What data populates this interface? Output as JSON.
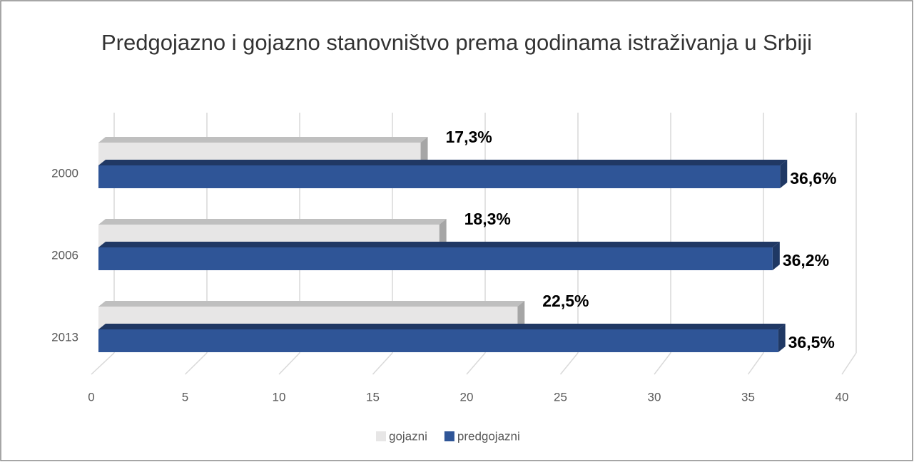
{
  "chart_data": {
    "type": "bar3d",
    "title": "Predgojazno i gojazno stanovništvo prema godinama istraživanja u Srbiji",
    "orientation": "horizontal",
    "categories": [
      "2000",
      "2006",
      "2013"
    ],
    "series": [
      {
        "name": "gojazni",
        "color": "#e7e6e6",
        "values": [
          17.3,
          18.3,
          22.5
        ],
        "value_labels": [
          "17,3%",
          "18,3%",
          "22,5%"
        ]
      },
      {
        "name": "predgojazni",
        "color": "#2f5597",
        "values": [
          36.6,
          36.2,
          36.5
        ],
        "value_labels": [
          "36,6%",
          "36,2%",
          "36,5%"
        ]
      }
    ],
    "xlim": [
      0,
      40
    ],
    "xticks": [
      0,
      5,
      10,
      15,
      20,
      25,
      30,
      35,
      40
    ],
    "grid": true,
    "legend": "bottom"
  }
}
